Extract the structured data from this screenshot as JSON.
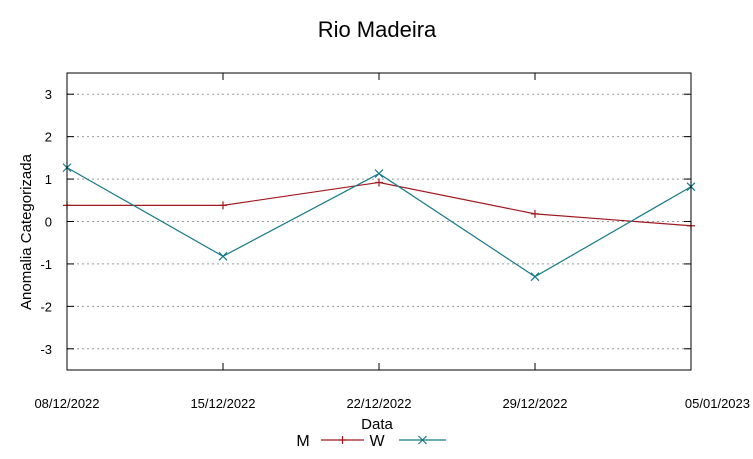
{
  "chart_data": {
    "type": "line",
    "title": "Rio Madeira",
    "xlabel": "Data",
    "ylabel": "Anomalia Categorizada",
    "categories": [
      "08/12/2022",
      "15/12/2022",
      "22/12/2022",
      "29/12/2022",
      "05/01/2023"
    ],
    "yticks": [
      "3",
      "2",
      "1",
      "0",
      "-1",
      "-2",
      "-3"
    ],
    "ylim": [
      -3.5,
      3.5
    ],
    "grid": true,
    "legend_position": "bottom",
    "series": [
      {
        "name": "M",
        "color": "#a0191e",
        "marker": "plus",
        "values": [
          0.38,
          0.38,
          0.92,
          0.18,
          -0.1
        ]
      },
      {
        "name": "W",
        "color": "#147a87",
        "marker": "cross",
        "values": [
          1.27,
          -0.82,
          1.13,
          -1.3,
          0.82
        ]
      }
    ]
  }
}
